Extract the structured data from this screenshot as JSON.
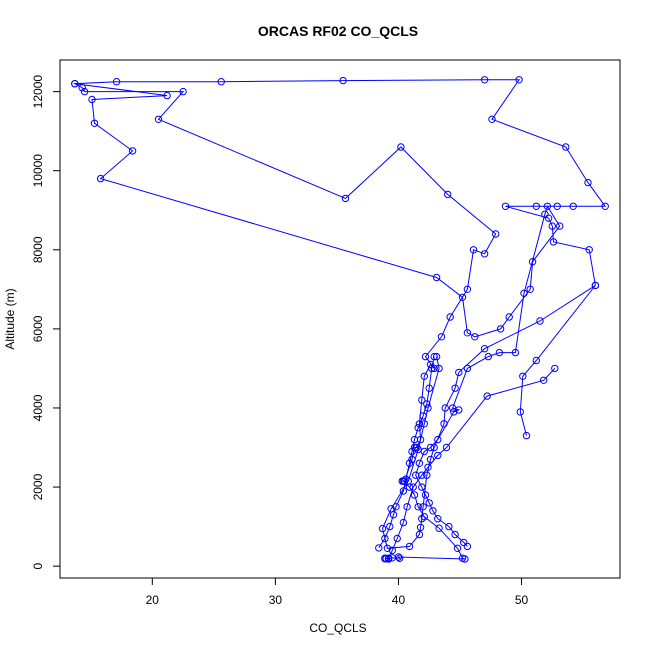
{
  "chart_data": {
    "type": "line",
    "title": "ORCAS RF02 CO_QCLS",
    "xlabel": "CO_QCLS",
    "ylabel": "Altitude (m)",
    "xlim": [
      12.5,
      58
    ],
    "ylim": [
      -300,
      12800
    ],
    "xticks": [
      20,
      30,
      40,
      50
    ],
    "yticks": [
      0,
      2000,
      4000,
      6000,
      8000,
      10000,
      12000
    ],
    "grid": false,
    "legend": "none",
    "colors": {
      "series": "#0000ff",
      "axes": "#000000",
      "background": "#ffffff"
    },
    "marker": "open-circle",
    "series": [
      {
        "points": [
          [
            38.9,
            200
          ],
          [
            39.2,
            180
          ],
          [
            39.5,
            210
          ],
          [
            40.1,
            200
          ],
          [
            40.0,
            230
          ],
          [
            45.4,
            180
          ],
          [
            45.2,
            200
          ],
          [
            44.8,
            450
          ],
          [
            43.3,
            960
          ],
          [
            42.1,
            1250
          ],
          [
            41.6,
            1500
          ],
          [
            41.3,
            1800
          ],
          [
            40.9,
            2000
          ],
          [
            40.4,
            2150
          ],
          [
            40.3,
            2150
          ],
          [
            40.5,
            2150
          ],
          [
            41.1,
            2700
          ],
          [
            41.3,
            3000
          ],
          [
            41.5,
            3000
          ],
          [
            41.8,
            3200
          ],
          [
            41.7,
            3600
          ],
          [
            41.9,
            4200
          ],
          [
            42.1,
            4800
          ],
          [
            42.6,
            5100
          ],
          [
            42.9,
            5000
          ],
          [
            42.2,
            5300
          ],
          [
            43.5,
            5800
          ],
          [
            44.2,
            6300
          ],
          [
            45.6,
            7000
          ],
          [
            46.1,
            8000
          ],
          [
            47.0,
            7900
          ],
          [
            47.9,
            8400
          ],
          [
            44.0,
            9400
          ],
          [
            40.2,
            10600
          ],
          [
            35.7,
            9300
          ],
          [
            20.5,
            11300
          ],
          [
            22.5,
            12000
          ],
          [
            14.5,
            12000
          ],
          [
            14.3,
            12100
          ],
          [
            13.7,
            12200
          ],
          [
            17.1,
            12250
          ],
          [
            25.6,
            12250
          ],
          [
            35.5,
            12280
          ],
          [
            47.0,
            12300
          ],
          [
            49.8,
            12300
          ],
          [
            47.6,
            11300
          ],
          [
            53.6,
            10600
          ],
          [
            55.4,
            9700
          ],
          [
            56.8,
            9100
          ],
          [
            54.2,
            9100
          ],
          [
            52.9,
            9100
          ],
          [
            51.2,
            9100
          ],
          [
            48.7,
            9100
          ],
          [
            52.2,
            8800
          ],
          [
            52.5,
            8600
          ],
          [
            52.6,
            8200
          ],
          [
            55.5,
            8000
          ],
          [
            56.0,
            7100
          ],
          [
            51.2,
            5200
          ],
          [
            50.1,
            4800
          ],
          [
            49.9,
            3900
          ],
          [
            50.4,
            3300
          ]
        ]
      },
      {
        "points": [
          [
            13.7,
            12200
          ],
          [
            21.2,
            11900
          ],
          [
            15.1,
            11800
          ],
          [
            15.3,
            11200
          ],
          [
            18.4,
            10500
          ],
          [
            15.8,
            9800
          ],
          [
            43.1,
            7300
          ],
          [
            45.2,
            6800
          ],
          [
            45.6,
            5900
          ],
          [
            46.2,
            5800
          ],
          [
            48.3,
            6000
          ],
          [
            49.0,
            6300
          ],
          [
            50.7,
            7000
          ],
          [
            50.9,
            7700
          ],
          [
            53.1,
            8600
          ],
          [
            52.1,
            9100
          ],
          [
            51.9,
            8900
          ],
          [
            50.2,
            6900
          ],
          [
            49.5,
            5400
          ],
          [
            48.2,
            5400
          ],
          [
            47.3,
            5300
          ],
          [
            45.6,
            5000
          ],
          [
            44.4,
            4000
          ],
          [
            44.9,
            3950
          ],
          [
            44.5,
            3900
          ],
          [
            43.2,
            3200
          ],
          [
            42.6,
            3000
          ],
          [
            42.1,
            2900
          ],
          [
            41.7,
            2600
          ],
          [
            41.4,
            2300
          ],
          [
            41.9,
            2000
          ],
          [
            42.2,
            1800
          ],
          [
            42.5,
            1600
          ],
          [
            42.8,
            1400
          ],
          [
            43.2,
            1200
          ],
          [
            44.1,
            1000
          ],
          [
            44.6,
            800
          ],
          [
            45.3,
            600
          ],
          [
            45.6,
            500
          ]
        ]
      },
      {
        "points": [
          [
            52.7,
            5000
          ],
          [
            51.8,
            4700
          ],
          [
            47.2,
            4300
          ],
          [
            43.9,
            3000
          ],
          [
            43.2,
            2800
          ],
          [
            42.4,
            2500
          ],
          [
            41.9,
            2300
          ],
          [
            41.2,
            2000
          ],
          [
            40.7,
            1500
          ],
          [
            40.4,
            1100
          ],
          [
            39.9,
            700
          ],
          [
            39.5,
            400
          ],
          [
            39.2,
            200
          ],
          [
            39.0,
            190
          ],
          [
            38.9,
            185
          ]
        ]
      },
      {
        "points": [
          [
            38.4,
            460
          ],
          [
            38.9,
            700
          ],
          [
            39.3,
            1000
          ],
          [
            39.6,
            1300
          ],
          [
            39.8,
            1500
          ],
          [
            40.4,
            1900
          ],
          [
            40.6,
            2200
          ],
          [
            40.9,
            2600
          ],
          [
            41.1,
            2900
          ],
          [
            41.3,
            3200
          ],
          [
            41.6,
            3500
          ],
          [
            42.0,
            3800
          ],
          [
            42.3,
            4100
          ],
          [
            42.5,
            4500
          ],
          [
            42.7,
            5000
          ],
          [
            42.9,
            5300
          ]
        ]
      },
      {
        "points": [
          [
            56.0,
            7100
          ],
          [
            51.5,
            6200
          ],
          [
            47.0,
            5500
          ],
          [
            44.9,
            4900
          ],
          [
            44.6,
            4500
          ],
          [
            43.8,
            4000
          ],
          [
            43.7,
            3600
          ],
          [
            42.9,
            3000
          ],
          [
            42.6,
            2700
          ],
          [
            42.3,
            2300
          ],
          [
            42.0,
            1500
          ],
          [
            41.9,
            1200
          ],
          [
            41.8,
            980
          ],
          [
            41.7,
            800
          ],
          [
            40.9,
            500
          ],
          [
            39.1,
            450
          ],
          [
            38.7,
            950
          ],
          [
            39.4,
            1450
          ],
          [
            40.8,
            2150
          ],
          [
            41.6,
            2950
          ],
          [
            42.1,
            3600
          ],
          [
            42.4,
            4000
          ],
          [
            43.3,
            5000
          ],
          [
            43.1,
            5300
          ]
        ]
      }
    ]
  }
}
